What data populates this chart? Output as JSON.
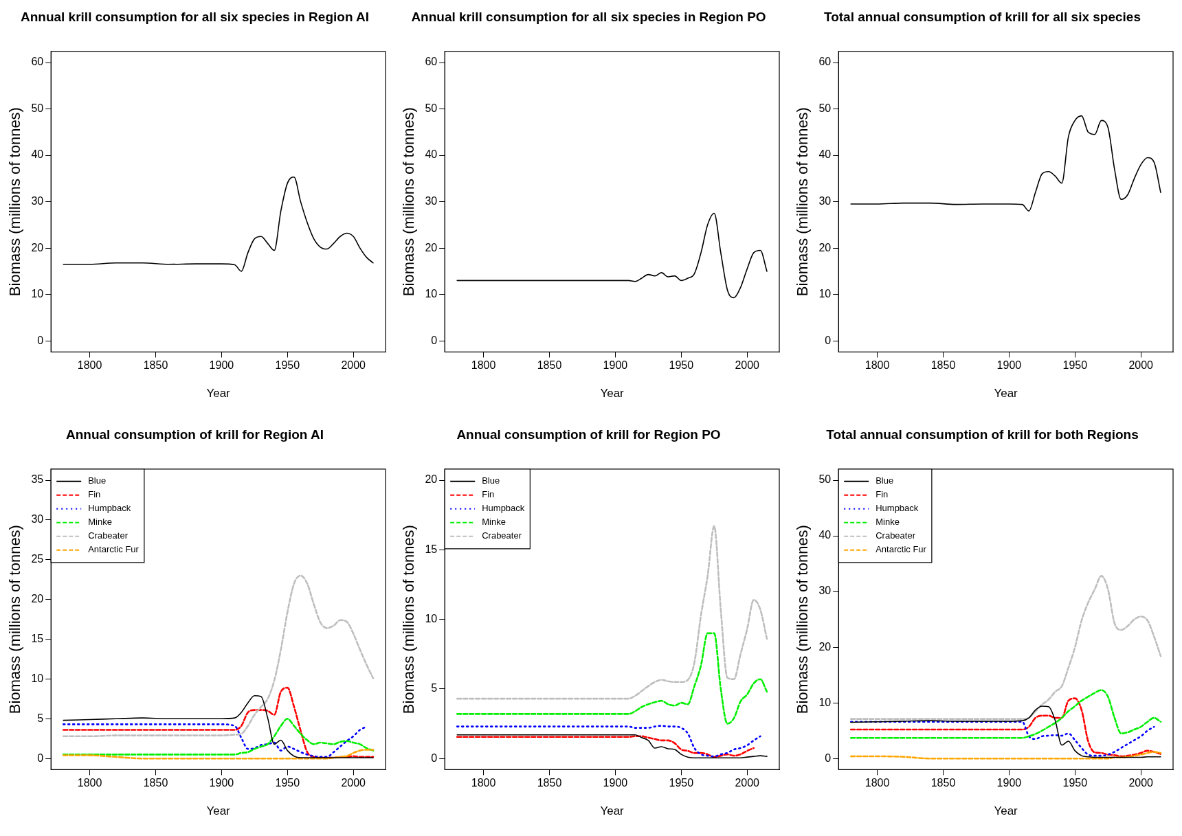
{
  "chart_data": [
    {
      "type": "line",
      "title": "Annual krill consumption for all six species in Region AI",
      "xlabel": "Year",
      "ylabel": "Biomass (millions of tonnes)",
      "x": [
        1780,
        1800,
        1820,
        1840,
        1860,
        1880,
        1900,
        1910,
        1915,
        1920,
        1925,
        1930,
        1935,
        1940,
        1945,
        1950,
        1955,
        1960,
        1965,
        1970,
        1975,
        1980,
        1985,
        1990,
        1995,
        2000,
        2005,
        2010,
        2015
      ],
      "series": [
        {
          "color": "#000000",
          "line_style": "solid",
          "values": [
            16.5,
            16.5,
            16.8,
            16.8,
            16.5,
            16.6,
            16.6,
            16.4,
            15,
            19,
            22,
            22.5,
            21,
            19.5,
            28,
            34,
            35.3,
            30,
            25.5,
            22,
            20.2,
            19.8,
            21,
            22.5,
            23.2,
            22.5,
            20,
            18,
            16.8
          ]
        }
      ],
      "xlim": [
        1770.6,
        2024.4
      ],
      "xticks": [
        1800,
        1850,
        1900,
        1950,
        2000
      ],
      "ylim": [
        -2.4,
        62.4
      ],
      "yticks": [
        0,
        10,
        20,
        30,
        40,
        50,
        60
      ]
    },
    {
      "type": "line",
      "title": "Annual krill consumption for all six species in Region PO",
      "xlabel": "Year",
      "ylabel": "Biomass (millions of tonnes)",
      "x": [
        1780,
        1800,
        1820,
        1840,
        1860,
        1880,
        1900,
        1910,
        1915,
        1920,
        1925,
        1930,
        1935,
        1940,
        1945,
        1950,
        1955,
        1960,
        1965,
        1970,
        1975,
        1980,
        1985,
        1990,
        1995,
        2000,
        2005,
        2010,
        2015
      ],
      "series": [
        {
          "color": "#000000",
          "line_style": "solid",
          "values": [
            13,
            13,
            13,
            13,
            13,
            13,
            13,
            13,
            12.8,
            13.5,
            14.3,
            14,
            14.7,
            13.8,
            14,
            13,
            13.5,
            14.5,
            19,
            25,
            27.5,
            19,
            11,
            9.3,
            11.5,
            15.5,
            19,
            19.5,
            15
          ]
        }
      ],
      "xlim": [
        1770.6,
        2024.4
      ],
      "xticks": [
        1800,
        1850,
        1900,
        1950,
        2000
      ],
      "ylim": [
        -2.4,
        62.4
      ],
      "yticks": [
        0,
        10,
        20,
        30,
        40,
        50,
        60
      ]
    },
    {
      "type": "line",
      "title": "Total annual consumption of krill for all six species",
      "xlabel": "Year",
      "ylabel": "Biomass (millions of tonnes)",
      "x": [
        1780,
        1800,
        1820,
        1840,
        1860,
        1880,
        1900,
        1910,
        1915,
        1920,
        1925,
        1930,
        1935,
        1940,
        1945,
        1950,
        1955,
        1960,
        1965,
        1970,
        1975,
        1980,
        1985,
        1990,
        1995,
        2000,
        2005,
        2010,
        2015
      ],
      "series": [
        {
          "color": "#000000",
          "line_style": "solid",
          "values": [
            29.5,
            29.5,
            29.7,
            29.7,
            29.4,
            29.5,
            29.5,
            29.4,
            28,
            32,
            36,
            36.5,
            35.5,
            34,
            44,
            47.5,
            48.5,
            45,
            44.5,
            47.5,
            46,
            37,
            30.5,
            31.5,
            35,
            38,
            39.5,
            38.5,
            32
          ]
        }
      ],
      "xlim": [
        1770.6,
        2024.4
      ],
      "xticks": [
        1800,
        1850,
        1900,
        1950,
        2000
      ],
      "ylim": [
        -2.4,
        62.4
      ],
      "yticks": [
        0,
        10,
        20,
        30,
        40,
        50,
        60
      ]
    },
    {
      "type": "line",
      "title": "Annual consumption of krill for Region AI",
      "xlabel": "Year",
      "ylabel": "Biomass (millions of tonnes)",
      "legend": "top left",
      "x": [
        1780,
        1800,
        1820,
        1840,
        1860,
        1880,
        1900,
        1910,
        1915,
        1920,
        1925,
        1930,
        1935,
        1940,
        1945,
        1950,
        1955,
        1960,
        1965,
        1970,
        1975,
        1980,
        1985,
        1990,
        1995,
        2000,
        2005,
        2010,
        2015
      ],
      "series": [
        {
          "name": "Blue",
          "color": "#000000",
          "line_style": "solid",
          "values": [
            4.8,
            4.9,
            5.0,
            5.1,
            5.0,
            5.0,
            5.0,
            5.1,
            5.8,
            7.0,
            7.9,
            7.8,
            5.1,
            1.8,
            2.3,
            1.0,
            0.3,
            0.1,
            0.1,
            0.1,
            0.1,
            0.1,
            0.1,
            0.1,
            0.1,
            0.1,
            0.1,
            0.1,
            0.1
          ]
        },
        {
          "name": "Fin",
          "color": "#ff0000",
          "line_style": "dashed",
          "values": [
            3.6,
            3.6,
            3.6,
            3.6,
            3.6,
            3.6,
            3.6,
            3.6,
            4.1,
            5.8,
            6.1,
            6.1,
            6.0,
            5.5,
            8.4,
            8.9,
            6.5,
            3.5,
            0.8,
            0.2,
            0.1,
            0.1,
            0.1,
            0.2,
            0.2,
            0.3,
            0.2,
            0.2,
            0.2
          ]
        },
        {
          "name": "Humpback",
          "color": "#0000ff",
          "line_style": "dotted",
          "values": [
            4.3,
            4.3,
            4.3,
            4.3,
            4.3,
            4.3,
            4.3,
            4.1,
            2.6,
            1.2,
            1.3,
            1.7,
            1.8,
            2.0,
            1.0,
            1.5,
            1.2,
            0.8,
            0.5,
            0.3,
            0.2,
            0.2,
            0.8,
            1.5,
            2.2,
            2.8,
            3.6,
            4.0,
            null
          ]
        },
        {
          "name": "Minke",
          "color": "#00ee00",
          "line_style": "dashed",
          "values": [
            0.5,
            0.5,
            0.5,
            0.5,
            0.5,
            0.5,
            0.5,
            0.5,
            0.7,
            0.8,
            1.2,
            1.5,
            1.8,
            2.8,
            4.1,
            5.0,
            4.1,
            3.1,
            2.3,
            1.8,
            2.0,
            1.9,
            1.8,
            2.1,
            2.2,
            2.0,
            1.8,
            1.3,
            1.0
          ]
        },
        {
          "name": "Crabeater",
          "color": "#bebebe",
          "line_style": "dashed",
          "values": [
            2.8,
            2.8,
            2.9,
            2.9,
            2.9,
            2.9,
            2.9,
            3.0,
            3.1,
            4.1,
            5.5,
            6.5,
            7.5,
            9.8,
            13.7,
            18.4,
            22.0,
            23.0,
            22.0,
            19.4,
            17.1,
            16.4,
            16.7,
            17.4,
            17.2,
            15.7,
            13.7,
            11.8,
            10.1
          ]
        },
        {
          "name": "Antarctic Fur",
          "color": "#ffa500",
          "line_style": "dashed",
          "values": [
            0.4,
            0.4,
            0.2,
            0,
            0,
            0,
            0,
            0,
            0,
            0,
            0,
            0,
            0,
            0,
            0,
            0,
            0,
            0,
            0,
            0,
            0,
            0,
            0.1,
            0.2,
            0.3,
            0.7,
            1.0,
            1.1,
            1.1
          ]
        }
      ],
      "xlim": [
        1770.6,
        2024.4
      ],
      "xticks": [
        1800,
        1850,
        1900,
        1950,
        2000
      ],
      "ylim": [
        -1.4,
        36.4
      ],
      "yticks": [
        0,
        5,
        10,
        15,
        20,
        25,
        30,
        35
      ]
    },
    {
      "type": "line",
      "title": "Annual consumption of krill for Region PO",
      "xlabel": "Year",
      "ylabel": "Biomass (millions of tonnes)",
      "legend": "top left",
      "x": [
        1780,
        1800,
        1820,
        1840,
        1860,
        1880,
        1900,
        1910,
        1915,
        1920,
        1925,
        1930,
        1935,
        1940,
        1945,
        1950,
        1955,
        1960,
        1965,
        1970,
        1975,
        1980,
        1985,
        1990,
        1995,
        2000,
        2005,
        2010,
        2015
      ],
      "series": [
        {
          "name": "Blue",
          "color": "#000000",
          "line_style": "solid",
          "values": [
            1.7,
            1.7,
            1.7,
            1.7,
            1.7,
            1.7,
            1.7,
            1.7,
            1.7,
            1.5,
            1.3,
            0.75,
            0.85,
            0.7,
            0.65,
            0.3,
            0.1,
            0.05,
            0.05,
            0.05,
            0.05,
            0.05,
            0.05,
            0.05,
            0.05,
            0.1,
            0.15,
            0.2,
            0.15
          ]
        },
        {
          "name": "Fin",
          "color": "#ff0000",
          "line_style": "dashed",
          "values": [
            1.55,
            1.55,
            1.55,
            1.55,
            1.55,
            1.55,
            1.55,
            1.55,
            1.6,
            1.6,
            1.5,
            1.4,
            1.3,
            1.3,
            1.1,
            0.65,
            0.55,
            0.4,
            0.4,
            0.3,
            0.1,
            0.2,
            0.3,
            0.2,
            0.3,
            0.55,
            0.75,
            null,
            null
          ]
        },
        {
          "name": "Humpback",
          "color": "#0000ff",
          "line_style": "dotted",
          "values": [
            2.3,
            2.3,
            2.3,
            2.3,
            2.3,
            2.3,
            2.3,
            2.3,
            2.2,
            2.2,
            2.2,
            2.3,
            2.35,
            2.3,
            2.3,
            2.2,
            1.8,
            0.75,
            0.3,
            0.2,
            0.15,
            0.3,
            0.4,
            0.65,
            0.75,
            0.95,
            1.3,
            1.6,
            null
          ]
        },
        {
          "name": "Minke",
          "color": "#00ee00",
          "line_style": "dashed",
          "values": [
            3.2,
            3.2,
            3.2,
            3.2,
            3.2,
            3.2,
            3.2,
            3.2,
            3.4,
            3.7,
            3.9,
            4.05,
            4.15,
            3.9,
            3.8,
            4.0,
            3.9,
            5.2,
            6.7,
            9.0,
            9.0,
            5.0,
            2.5,
            2.9,
            4.1,
            4.6,
            5.4,
            5.7,
            4.8
          ]
        },
        {
          "name": "Crabeater",
          "color": "#bebebe",
          "line_style": "dashed",
          "values": [
            4.3,
            4.3,
            4.3,
            4.3,
            4.3,
            4.3,
            4.3,
            4.3,
            4.5,
            4.85,
            5.2,
            5.5,
            5.65,
            5.55,
            5.5,
            5.5,
            5.65,
            6.9,
            10.3,
            13.1,
            16.7,
            10.7,
            5.8,
            5.7,
            7.5,
            9.3,
            11.4,
            10.7,
            8.6
          ]
        }
      ],
      "xlim": [
        1770.6,
        2024.4
      ],
      "xticks": [
        1800,
        1850,
        1900,
        1950,
        2000
      ],
      "ylim": [
        -0.8,
        20.8
      ],
      "yticks": [
        0,
        5,
        10,
        15,
        20
      ]
    },
    {
      "type": "line",
      "title": "Total annual consumption of krill for both Regions",
      "xlabel": "Year",
      "ylabel": "Biomass (millions of tonnes)",
      "legend": "top left",
      "x": [
        1780,
        1800,
        1820,
        1840,
        1860,
        1880,
        1900,
        1910,
        1915,
        1920,
        1925,
        1930,
        1935,
        1940,
        1945,
        1950,
        1955,
        1960,
        1965,
        1970,
        1975,
        1980,
        1985,
        1990,
        1995,
        2000,
        2005,
        2010,
        2015
      ],
      "series": [
        {
          "name": "Blue",
          "color": "#000000",
          "line_style": "solid",
          "values": [
            6.5,
            6.6,
            6.7,
            6.8,
            6.7,
            6.7,
            6.7,
            6.8,
            7.3,
            8.7,
            9.4,
            9.3,
            6.8,
            2.4,
            3.1,
            1.4,
            0.5,
            0.3,
            0.2,
            0.2,
            0.2,
            0.2,
            0.2,
            0.2,
            0.2,
            0.2,
            0.3,
            0.3,
            0.3
          ]
        },
        {
          "name": "Fin",
          "color": "#ff0000",
          "line_style": "dashed",
          "values": [
            5.2,
            5.2,
            5.2,
            5.2,
            5.2,
            5.2,
            5.2,
            5.2,
            5.7,
            7.3,
            7.7,
            7.7,
            7.3,
            7.3,
            10.4,
            10.8,
            8.7,
            3.1,
            1.1,
            1.0,
            0.7,
            0.6,
            0.4,
            0.5,
            0.7,
            1.0,
            1.4,
            1.2,
            0.8
          ]
        },
        {
          "name": "Humpback",
          "color": "#0000ff",
          "line_style": "dotted",
          "values": [
            6.6,
            6.6,
            6.6,
            6.6,
            6.6,
            6.6,
            6.6,
            6.6,
            4.0,
            3.5,
            4.0,
            4.1,
            4.2,
            4.1,
            4.5,
            3.3,
            1.9,
            0.7,
            0.5,
            0.5,
            0.7,
            1.2,
            1.9,
            2.6,
            3.3,
            4.0,
            5.0,
            5.7,
            null
          ]
        },
        {
          "name": "Minke",
          "color": "#00ee00",
          "line_style": "dashed",
          "values": [
            3.7,
            3.7,
            3.7,
            3.7,
            3.7,
            3.7,
            3.7,
            3.7,
            4.0,
            4.4,
            5.0,
            5.7,
            6.4,
            7.3,
            8.5,
            9.4,
            10.4,
            11.1,
            11.8,
            12.3,
            11.1,
            7.3,
            4.5,
            4.7,
            5.2,
            5.7,
            6.6,
            7.3,
            6.6
          ]
        },
        {
          "name": "Crabeater",
          "color": "#bebebe",
          "line_style": "dashed",
          "values": [
            7.1,
            7.1,
            7.1,
            7.1,
            7.1,
            7.1,
            7.1,
            7.1,
            7.3,
            8.5,
            9.7,
            10.6,
            12.0,
            13.0,
            16.3,
            20.0,
            24.8,
            28.0,
            30.4,
            32.8,
            30.4,
            24.3,
            23.1,
            23.8,
            25.0,
            25.5,
            24.8,
            21.9,
            18.4
          ]
        },
        {
          "name": "Antarctic Fur",
          "color": "#ffa500",
          "line_style": "dashed",
          "values": [
            0.4,
            0.4,
            0.3,
            0,
            0,
            0,
            0,
            0,
            0,
            0,
            0,
            0,
            0,
            0,
            0,
            0,
            0,
            0,
            0,
            0,
            0,
            0.2,
            0.2,
            0.3,
            0.5,
            0.7,
            1.0,
            1.2,
            1.0
          ]
        }
      ],
      "xlim": [
        1770.6,
        2024.4
      ],
      "xticks": [
        1800,
        1850,
        1900,
        1950,
        2000
      ],
      "ylim": [
        -2,
        52
      ],
      "yticks": [
        0,
        10,
        20,
        30,
        40,
        50
      ]
    }
  ]
}
